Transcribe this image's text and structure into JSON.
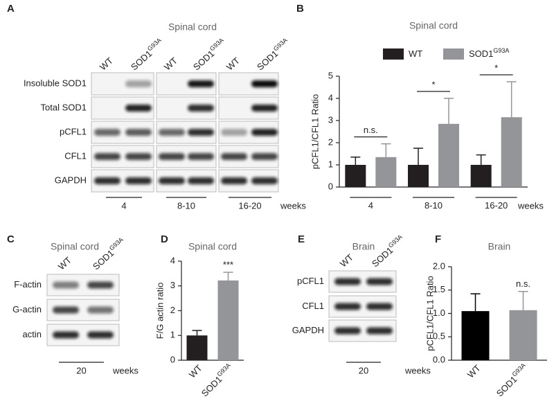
{
  "panels": {
    "a": {
      "letter": "A",
      "title": "Spinal cord",
      "lanes": [
        {
          "label": "WT"
        },
        {
          "label": "SOD1",
          "sup": "G93A"
        },
        {
          "label": "WT"
        },
        {
          "label": "SOD1",
          "sup": "G93A"
        },
        {
          "label": "WT"
        },
        {
          "label": "SOD1",
          "sup": "G93A"
        }
      ],
      "rows": [
        "Insoluble SOD1",
        "Total SOD1",
        "pCFL1",
        "CFL1",
        "GAPDH"
      ],
      "groups": [
        "4",
        "8-10",
        "16-20"
      ],
      "unit": "weeks"
    },
    "c": {
      "letter": "C",
      "title": "Spinal cord",
      "lanes": [
        {
          "label": "WT"
        },
        {
          "label": "SOD1",
          "sup": "G93A"
        }
      ],
      "rows": [
        "F-actin",
        "G-actin",
        "actin"
      ],
      "groups": [
        "20"
      ],
      "unit": "weeks"
    },
    "e": {
      "letter": "E",
      "title": "Brain",
      "lanes": [
        {
          "label": "WT"
        },
        {
          "label": "SOD1",
          "sup": "G93A"
        }
      ],
      "rows": [
        "pCFL1",
        "CFL1",
        "GAPDH"
      ],
      "groups": [
        "20"
      ],
      "unit": "weeks"
    }
  },
  "chart_data": [
    {
      "type": "grouped_bar",
      "letter": "B",
      "title": "Spinal cord",
      "y_label": "pCFL1/CFL1 Ratio",
      "categories": [
        {
          "label": "4"
        },
        {
          "label": "8-10"
        },
        {
          "label": "16-20"
        }
      ],
      "x_unit": "weeks",
      "series": [
        {
          "name": {
            "label": "WT"
          },
          "color": "#231f20",
          "values": [
            1,
            1,
            1
          ],
          "errors": [
            0.35,
            0.75,
            0.45
          ]
        },
        {
          "name": {
            "label": "SOD1",
            "sup": "G93A"
          },
          "color": "#939598",
          "values": [
            1.35,
            2.85,
            3.15
          ],
          "errors": [
            0.6,
            1.15,
            1.6
          ]
        }
      ],
      "significance": [
        "n.s.",
        "*",
        "*"
      ],
      "ylim": [
        0,
        5
      ],
      "yticks": [
        0,
        1,
        2,
        3,
        4,
        5
      ]
    },
    {
      "type": "bar",
      "letter": "D",
      "title": "Spinal cord",
      "y_label": "F/G actin ratio",
      "categories": [
        {
          "label": "WT"
        },
        {
          "label": "SOD1",
          "sup": "G93A"
        }
      ],
      "values": [
        1,
        3.22
      ],
      "errors": [
        0.2,
        0.33
      ],
      "colors": [
        "#231f20",
        "#939598"
      ],
      "annotation": "***",
      "ylim": [
        0,
        4
      ],
      "yticks": [
        0,
        1,
        2,
        3,
        4
      ]
    },
    {
      "type": "bar",
      "letter": "F",
      "title": "Brain",
      "y_label": "pCFL1/CFL1 Ratio",
      "categories": [
        {
          "label": "WT"
        },
        {
          "label": "SOD1",
          "sup": "G93A"
        }
      ],
      "values": [
        1.05,
        1.07
      ],
      "errors": [
        0.37,
        0.4
      ],
      "colors": [
        "#000000",
        "#939598"
      ],
      "annotation": "n.s.",
      "ylim": [
        0,
        2
      ],
      "yticks": [
        {
          "value": 0,
          "label": "0.0"
        },
        {
          "value": 0.5,
          "label": "0.5"
        },
        {
          "value": 1,
          "label": "1.0"
        },
        {
          "value": 1.5,
          "label": "1.5"
        },
        {
          "value": 2,
          "label": "2.0"
        }
      ]
    }
  ]
}
